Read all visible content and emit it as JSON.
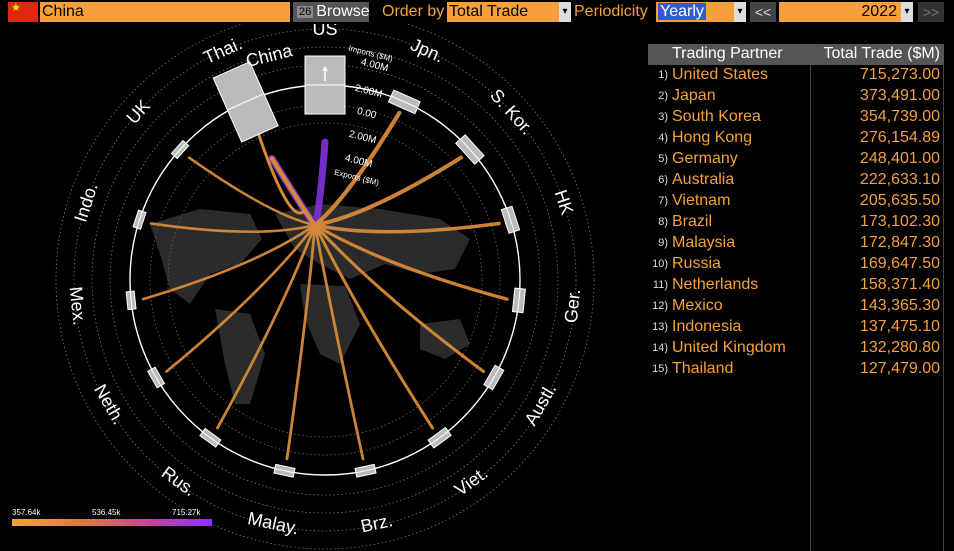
{
  "toolbar": {
    "country": "China",
    "browse_num": "26",
    "browse_label": "Browse",
    "order_label": "Order by",
    "order_value": "Total Trade",
    "periodicity_label": "Periodicity",
    "periodicity_value": "Yearly",
    "prev_label": "<<",
    "year": "2022",
    "next_label": ">>",
    "dropdown_glyph": "▾",
    "flag_star": "★"
  },
  "chart": {
    "center": "China",
    "scale_labels": [
      "Imports ($M)",
      "4.00M",
      "2.00M",
      "0.00",
      "2.00M",
      "4.00M",
      "Exports ($M)"
    ],
    "partners": [
      {
        "label": "US",
        "angle": 0,
        "value": 715273.0,
        "color": "#7a2fd0",
        "big": true
      },
      {
        "label": "Jpn.",
        "angle": 24,
        "value": 373491.0,
        "color": "#d6893a"
      },
      {
        "label": "S. Kor.",
        "angle": 48,
        "value": 354739.0,
        "color": "#d6893a"
      },
      {
        "label": "HK",
        "angle": 72,
        "value": 276154.89,
        "color": "#d6893a"
      },
      {
        "label": "Ger.",
        "angle": 96,
        "value": 248401.0,
        "color": "#d6893a"
      },
      {
        "label": "Austl.",
        "angle": 120,
        "value": 222633.1,
        "color": "#d6893a"
      },
      {
        "label": "Viet.",
        "angle": 144,
        "value": 205635.5,
        "color": "#d6893a"
      },
      {
        "label": "Brz.",
        "angle": 168,
        "value": 173102.3,
        "color": "#d6893a"
      },
      {
        "label": "Malay.",
        "angle": 192,
        "value": 172847.3,
        "color": "#d6893a"
      },
      {
        "label": "Rus.",
        "angle": 216,
        "value": 169647.5,
        "color": "#d6893a"
      },
      {
        "label": "Neth.",
        "angle": 240,
        "value": 158371.4,
        "color": "#d6893a"
      },
      {
        "label": "Mex.",
        "angle": 264,
        "value": 143365.3,
        "color": "#d6893a"
      },
      {
        "label": "Indo.",
        "angle": 288,
        "value": 137475.1,
        "color": "#d6893a"
      },
      {
        "label": "UK",
        "angle": 312,
        "value": 132280.8,
        "color": "#d6893a"
      },
      {
        "label": "Thai.",
        "angle": 336,
        "value": 127479.0,
        "color": "#d6893a"
      }
    ],
    "china_angle": 336,
    "colors": {
      "low": "#f2a33a",
      "high": "#8a32ff",
      "ring": "#ffffff",
      "box": "#bbbbbb"
    }
  },
  "legend": {
    "min": "357.64k",
    "mid": "536.45k",
    "max": "715.27k"
  },
  "table": {
    "headers": [
      "Trading Partner",
      "Total Trade ($M)"
    ],
    "rows": [
      {
        "idx": "1)",
        "name": "United States",
        "value": "715,273.00"
      },
      {
        "idx": "2)",
        "name": "Japan",
        "value": "373,491.00"
      },
      {
        "idx": "3)",
        "name": "South Korea",
        "value": "354,739.00"
      },
      {
        "idx": "4)",
        "name": "Hong Kong",
        "value": "276,154.89"
      },
      {
        "idx": "5)",
        "name": "Germany",
        "value": "248,401.00"
      },
      {
        "idx": "6)",
        "name": "Australia",
        "value": "222,633.10"
      },
      {
        "idx": "7)",
        "name": "Vietnam",
        "value": "205,635.50"
      },
      {
        "idx": "8)",
        "name": "Brazil",
        "value": "173,102.30"
      },
      {
        "idx": "9)",
        "name": "Malaysia",
        "value": "172,847.30"
      },
      {
        "idx": "10)",
        "name": "Russia",
        "value": "169,647.50"
      },
      {
        "idx": "11)",
        "name": "Netherlands",
        "value": "158,371.40"
      },
      {
        "idx": "12)",
        "name": "Mexico",
        "value": "143,365.30"
      },
      {
        "idx": "13)",
        "name": "Indonesia",
        "value": "137,475.10"
      },
      {
        "idx": "14)",
        "name": "United Kingdom",
        "value": "132,280.80"
      },
      {
        "idx": "15)",
        "name": "Thailand",
        "value": "127,479.00"
      }
    ]
  }
}
